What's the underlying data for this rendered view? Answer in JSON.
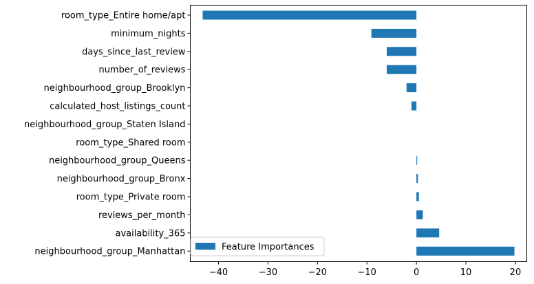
{
  "chart_data": {
    "type": "bar",
    "orientation": "horizontal",
    "categories": [
      "room_type_Entire home/apt",
      "minimum_nights",
      "days_since_last_review",
      "number_of_reviews",
      "neighbourhood_group_Brooklyn",
      "calculated_host_listings_count",
      "neighbourhood_group_Staten Island",
      "room_type_Shared room",
      "neighbourhood_group_Queens",
      "neighbourhood_group_Bronx",
      "room_type_Private room",
      "reviews_per_month",
      "availability_365",
      "neighbourhood_group_Manhattan"
    ],
    "series": [
      {
        "name": "Feature Importances",
        "values": [
          -43.2,
          -9.1,
          -6.0,
          -6.0,
          -2.0,
          -1.0,
          0.0,
          0.0,
          0.15,
          0.3,
          0.5,
          1.3,
          4.6,
          19.8
        ],
        "color": "#1f77b4"
      }
    ],
    "xlim": [
      -45.7,
      22.3
    ],
    "xticks": [
      -40,
      -30,
      -20,
      -10,
      0,
      10,
      20
    ],
    "xtick_labels": [
      "−40",
      "−30",
      "−20",
      "−10",
      "0",
      "10",
      "20"
    ],
    "legend_position": "lower-left",
    "grid": false,
    "title": "",
    "xlabel": "",
    "ylabel": ""
  }
}
